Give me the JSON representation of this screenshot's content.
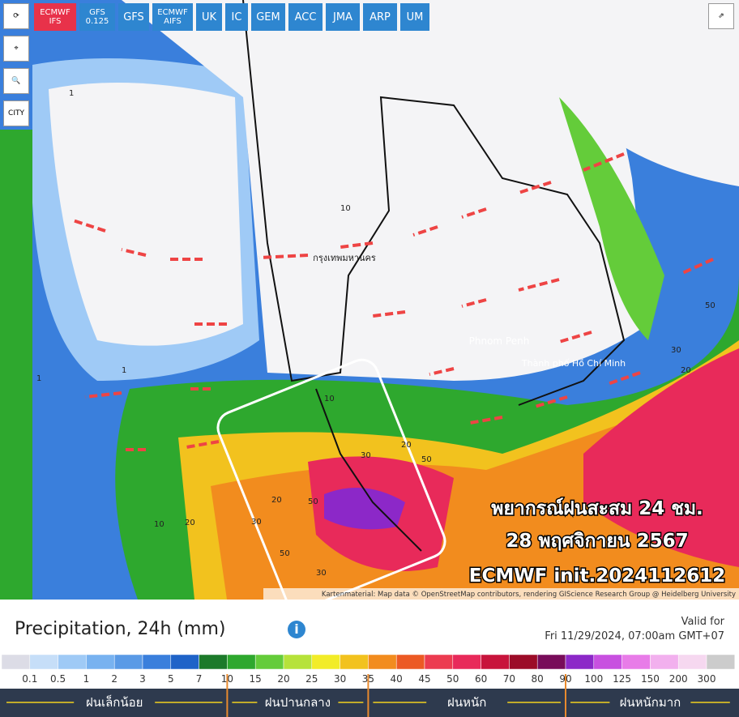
{
  "toolbar": {
    "models": [
      "ECMWF IFS",
      "GFS 0.125",
      "GFS",
      "ECMWF AIFS",
      "UK",
      "IC",
      "GEM",
      "ACC",
      "JMA",
      "ARP",
      "UM"
    ],
    "city_tool": "CITY"
  },
  "map": {
    "places": [
      "กรุงเทพมหานคร",
      "Phnom Penh",
      "Thành phố Hồ Chí Minh"
    ],
    "contour_labels": [
      "1",
      "1",
      "1",
      "10",
      "10",
      "20",
      "20",
      "30",
      "30",
      "50",
      "50",
      "50",
      "30",
      "20",
      "10",
      "50",
      "20",
      "30"
    ],
    "overlay": [
      "พยากรณ์ฝนสะสม 24 ชม.",
      "28 พฤศจิกายน 2567",
      "ECMWF init.2024112612"
    ],
    "attribution": "Kartenmaterial: Map data © OpenStreetMap contributors, rendering GIScience Research Group @ Heidelberg University"
  },
  "legend": {
    "title": "Precipitation, 24h (mm)",
    "valid_label": "Valid for",
    "valid_time": "Fri 11/29/2024, 07:00am GMT+07",
    "ticks": [
      "0.1",
      "0.5",
      "1",
      "2",
      "3",
      "5",
      "7",
      "10",
      "15",
      "20",
      "25",
      "30",
      "35",
      "40",
      "45",
      "50",
      "60",
      "70",
      "80",
      "90",
      "100",
      "125",
      "150",
      "200",
      "300"
    ],
    "colors": [
      "#dcdce6",
      "#c6def8",
      "#9fcaf6",
      "#78b2f0",
      "#5a9ae6",
      "#3a7fdc",
      "#1f63c8",
      "#1c7a2a",
      "#2ea82e",
      "#64cc3a",
      "#b6e23a",
      "#f2ec28",
      "#f2c21e",
      "#f28c1e",
      "#ec5a24",
      "#ec3c50",
      "#e82a5a",
      "#c8143c",
      "#9c0c28",
      "#780c5a",
      "#8c28c8",
      "#c850e0",
      "#e87ce8",
      "#f2b0ee",
      "#f6d8f0",
      "#cccccc"
    ],
    "categories": [
      "ฝนเล็กน้อย",
      "ฝนปานกลาง",
      "ฝนหนัก",
      "ฝนหนักมาก"
    ]
  }
}
